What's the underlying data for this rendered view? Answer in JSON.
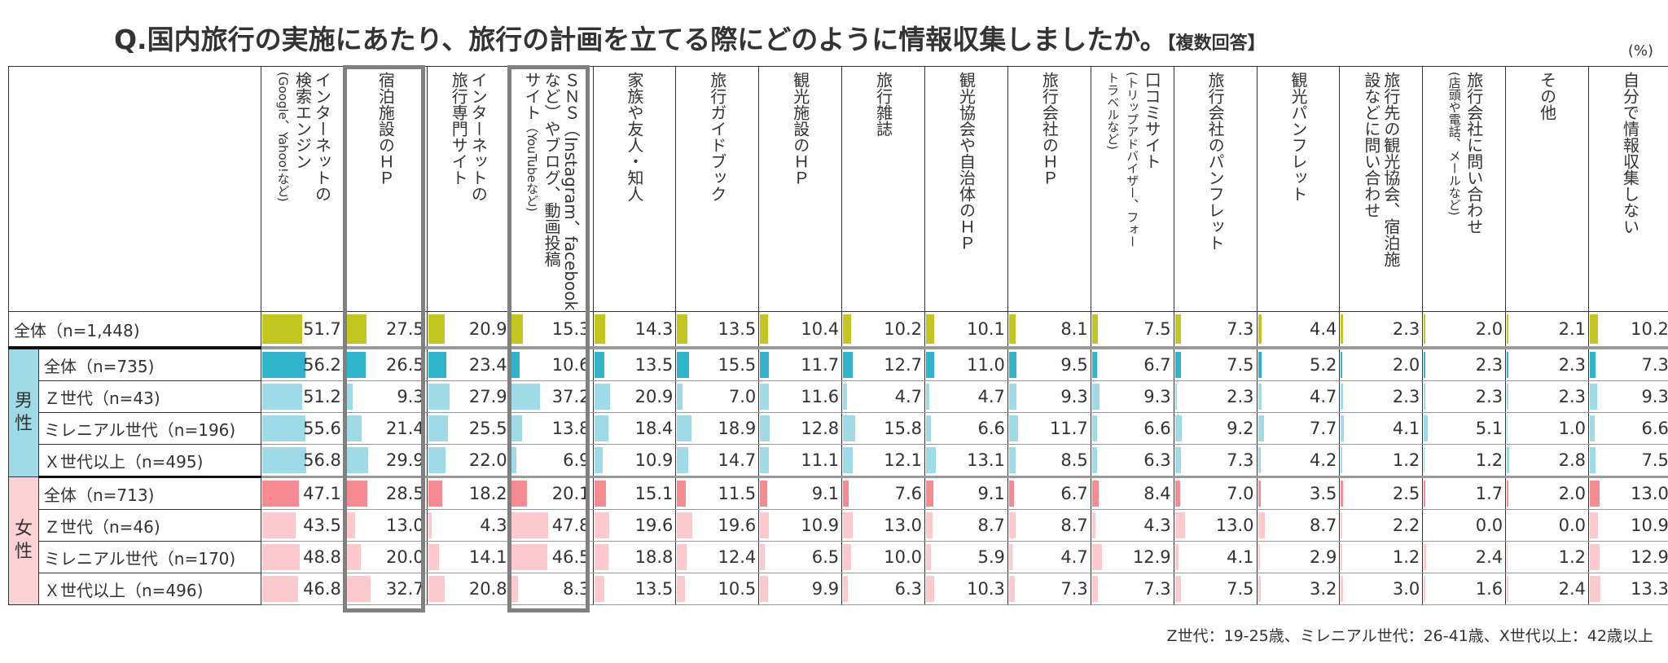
{
  "title": {
    "main": "Q.国内旅行の実施にあたり、旅行の計画を立てる際にどのように情報収集しましたか。",
    "sub": "【複数回答】"
  },
  "unit": "(%)",
  "footnote": "Z世代：19-25歳、ミレニアル世代：26-41歳、X世代以上：42歳以上",
  "colors": {
    "overall": "#c2c61f",
    "male_total": "#2fb4cc",
    "male_sub": "#9fdbe6",
    "female_total": "#f58a90",
    "female_sub": "#fcc9cd",
    "male_label_bg": "#9fdbe6",
    "female_label_bg": "#fcd2d6",
    "highlight_border": "#808080"
  },
  "chart_data": {
    "type": "table",
    "title": "Q.国内旅行の実施にあたり、旅行の計画を立てる際にどのように情報収集しましたか。【複数回答】",
    "unit": "%",
    "highlighted_columns": [
      1,
      3
    ],
    "columns": [
      {
        "lines": [
          [
            {
              "t": "インターネットの"
            }
          ],
          [
            {
              "t": "検索エンジン"
            }
          ],
          [
            {
              "t": "(Google、Yahoo!など)",
              "small": true
            }
          ]
        ]
      },
      {
        "lines": [
          [
            {
              "t": "宿泊施設のＨＰ"
            }
          ]
        ]
      },
      {
        "lines": [
          [
            {
              "t": "インターネットの"
            }
          ],
          [
            {
              "t": "旅行専門サイト"
            }
          ]
        ]
      },
      {
        "lines": [
          [
            {
              "t": "ＳＮＳ（Instagram、facebook"
            }
          ],
          [
            {
              "t": "など）やブログ、動画投稿"
            }
          ],
          [
            {
              "t": "サイト"
            },
            {
              "t": "（YouTubeなど)",
              "small": true
            }
          ]
        ]
      },
      {
        "lines": [
          [
            {
              "t": "家族や友人・知人"
            }
          ]
        ]
      },
      {
        "lines": [
          [
            {
              "t": "旅行ガイドブック"
            }
          ]
        ]
      },
      {
        "lines": [
          [
            {
              "t": "観光施設のＨＰ"
            }
          ]
        ]
      },
      {
        "lines": [
          [
            {
              "t": "旅行雑誌"
            }
          ]
        ]
      },
      {
        "lines": [
          [
            {
              "t": "観光協会や自治体のＨＰ"
            }
          ]
        ]
      },
      {
        "lines": [
          [
            {
              "t": "旅行会社のＨＰ"
            }
          ]
        ]
      },
      {
        "lines": [
          [
            {
              "t": "口コミサイト"
            }
          ],
          [
            {
              "t": "(トリップアドバイザー、フォー",
              "small": true
            }
          ],
          [
            {
              "t": "トラベルなど)",
              "small": true
            }
          ]
        ]
      },
      {
        "lines": [
          [
            {
              "t": "旅行会社のパンフレット"
            }
          ]
        ]
      },
      {
        "lines": [
          [
            {
              "t": "観光パンフレット"
            }
          ]
        ]
      },
      {
        "lines": [
          [
            {
              "t": "旅行先の観光協会、宿泊施"
            }
          ],
          [
            {
              "t": "設などに問い合わせ"
            }
          ]
        ]
      },
      {
        "lines": [
          [
            {
              "t": "旅行会社に問い合わせ"
            }
          ],
          [
            {
              "t": "(店頭や電話、メールなど)",
              "small": true
            }
          ]
        ]
      },
      {
        "lines": [
          [
            {
              "t": "その他"
            }
          ]
        ]
      },
      {
        "lines": [
          [
            {
              "t": "自分で情報収集しない"
            }
          ]
        ]
      }
    ],
    "groups": [
      {
        "label": "男性"
      },
      {
        "label": "女性"
      }
    ],
    "rows": [
      {
        "label": "全体（n=1,448)",
        "group": null,
        "kind": "overall",
        "values": [
          51.7,
          27.5,
          20.9,
          15.3,
          14.3,
          13.5,
          10.4,
          10.2,
          10.1,
          8.1,
          7.5,
          7.3,
          4.4,
          2.3,
          2.0,
          2.1,
          10.2
        ]
      },
      {
        "label": "全体（n=735)",
        "group": 0,
        "kind": "male_total",
        "values": [
          56.2,
          26.5,
          23.4,
          10.6,
          13.5,
          15.5,
          11.7,
          12.7,
          11.0,
          9.5,
          6.7,
          7.5,
          5.2,
          2.0,
          2.3,
          2.3,
          7.3
        ]
      },
      {
        "label": "Ｚ世代（n=43)",
        "group": 0,
        "kind": "male_sub",
        "values": [
          51.2,
          9.3,
          27.9,
          37.2,
          20.9,
          7.0,
          11.6,
          4.7,
          4.7,
          9.3,
          9.3,
          2.3,
          4.7,
          2.3,
          2.3,
          2.3,
          9.3
        ]
      },
      {
        "label": "ミレニアル世代（n=196)",
        "group": 0,
        "kind": "male_sub",
        "values": [
          55.6,
          21.4,
          25.5,
          13.8,
          18.4,
          18.9,
          12.8,
          15.8,
          6.6,
          11.7,
          6.6,
          9.2,
          7.7,
          4.1,
          5.1,
          1.0,
          6.6
        ]
      },
      {
        "label": "Ｘ世代以上（n=495)",
        "group": 0,
        "kind": "male_sub",
        "values": [
          56.8,
          29.9,
          22.0,
          6.9,
          10.9,
          14.7,
          11.1,
          12.1,
          13.1,
          8.5,
          6.3,
          7.3,
          4.2,
          1.2,
          1.2,
          2.8,
          7.5
        ]
      },
      {
        "label": "全体（n=713)",
        "group": 1,
        "kind": "female_total",
        "values": [
          47.1,
          28.5,
          18.2,
          20.1,
          15.1,
          11.5,
          9.1,
          7.6,
          9.1,
          6.7,
          8.4,
          7.0,
          3.5,
          2.5,
          1.7,
          2.0,
          13.0
        ]
      },
      {
        "label": "Ｚ世代（n=46)",
        "group": 1,
        "kind": "female_sub",
        "values": [
          43.5,
          13.0,
          4.3,
          47.8,
          19.6,
          19.6,
          10.9,
          13.0,
          8.7,
          8.7,
          4.3,
          13.0,
          8.7,
          2.2,
          0.0,
          0.0,
          10.9
        ]
      },
      {
        "label": "ミレニアル世代（n=170)",
        "group": 1,
        "kind": "female_sub",
        "values": [
          48.8,
          20.0,
          14.1,
          46.5,
          18.8,
          12.4,
          6.5,
          10.0,
          5.9,
          4.7,
          12.9,
          4.1,
          2.9,
          1.2,
          2.4,
          1.2,
          12.9
        ]
      },
      {
        "label": "Ｘ世代以上（n=496)",
        "group": 1,
        "kind": "female_sub",
        "values": [
          46.8,
          32.7,
          20.8,
          8.3,
          13.5,
          10.5,
          9.9,
          6.3,
          10.3,
          7.3,
          7.3,
          7.5,
          3.2,
          3.0,
          1.6,
          2.4,
          13.3
        ]
      }
    ]
  }
}
